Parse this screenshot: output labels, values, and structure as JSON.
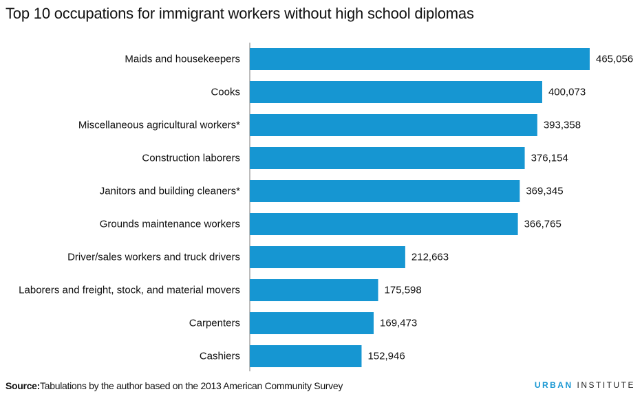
{
  "chart_data": {
    "type": "bar",
    "orientation": "horizontal",
    "title": "Top 10 occupations for immigrant workers without high school diplomas",
    "categories": [
      "Maids and housekeepers",
      "Cooks",
      "Miscellaneous agricultural workers*",
      "Construction laborers",
      "Janitors and building cleaners*",
      "Grounds maintenance workers",
      "Driver/sales workers and truck drivers",
      "Laborers and freight, stock, and material movers",
      "Carpenters",
      "Cashiers"
    ],
    "values": [
      465056,
      400073,
      393358,
      376154,
      369345,
      366765,
      212663,
      175598,
      169473,
      152946
    ],
    "value_labels": [
      "465,056",
      "400,073",
      "393,358",
      "376,154",
      "369,345",
      "366,765",
      "212,663",
      "175,598",
      "169,473",
      "152,946"
    ],
    "xlim": [
      0,
      465056
    ],
    "bar_color": "#1696d2",
    "grid": false,
    "legend": "none"
  },
  "source": {
    "label": "Source:",
    "text": "Tabulations by the author based on the 2013 American Community Survey"
  },
  "logo": {
    "brand": "URBAN",
    "suffix": " INSTITUTE",
    "color": "#1696d2"
  }
}
